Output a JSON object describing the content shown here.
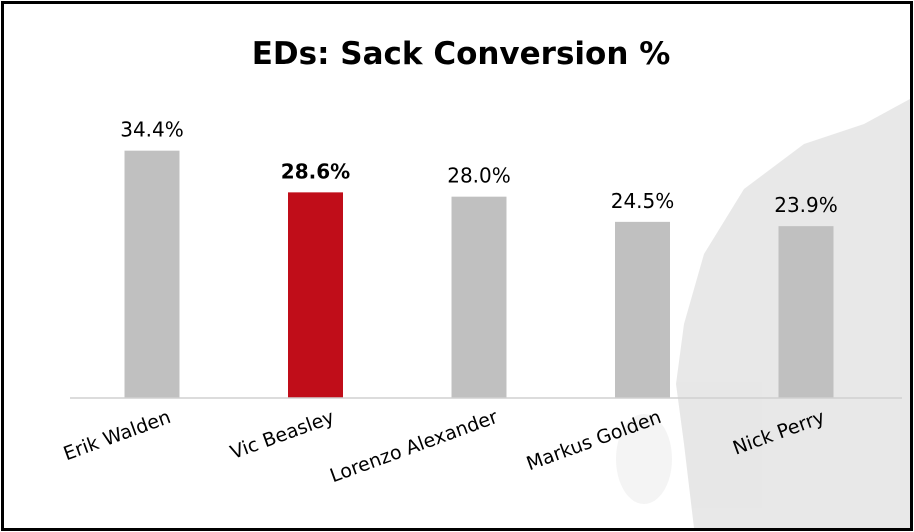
{
  "chart_data": {
    "type": "bar",
    "title": "EDs: Sack Conversion %",
    "xlabel": "",
    "ylabel": "",
    "categories": [
      "Erik Walden",
      "Vic Beasley",
      "Lorenzo Alexander",
      "Markus Golden",
      "Nick Perry"
    ],
    "values": [
      34.4,
      28.6,
      28.0,
      24.5,
      23.9
    ],
    "data_labels": [
      "34.4%",
      "28.6%",
      "28.0%",
      "24.5%",
      "23.9%"
    ],
    "highlighted": "Vic Beasley",
    "ylim": [
      0,
      35
    ],
    "grid": false,
    "legend": "none",
    "colors": {
      "bar": "#c0c0c0",
      "highlight": "#c00d19",
      "axis": "#d0d0d0"
    }
  }
}
